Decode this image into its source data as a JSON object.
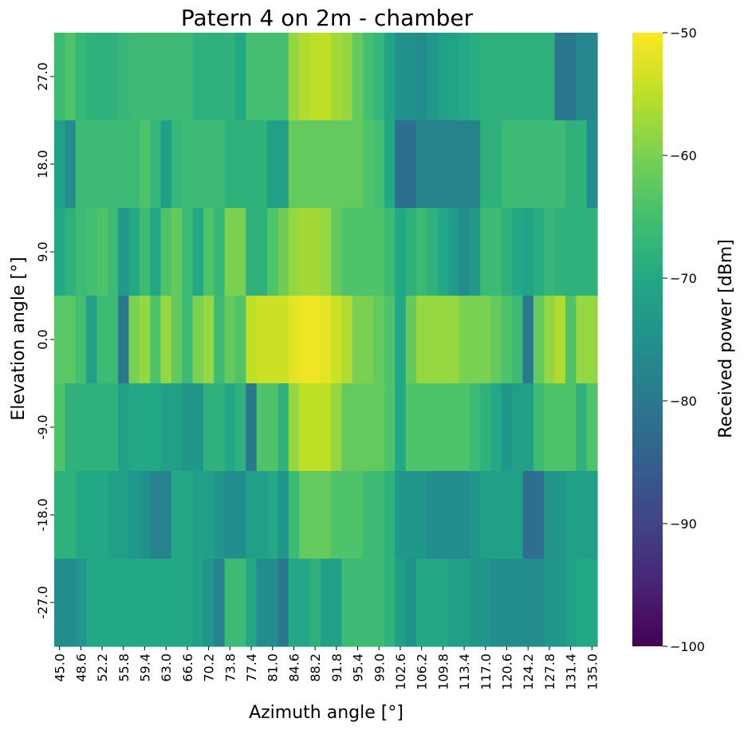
{
  "chart_data": {
    "type": "heatmap",
    "title": "Patern 4 on 2m - chamber",
    "xlabel": "Azimuth angle [°]",
    "ylabel": "Elevation angle [°]",
    "colorbar_label": "Received power [dBm]",
    "colormap": "viridis",
    "vmin": -100,
    "vmax": -50,
    "colorbar_ticks": [
      -50,
      -60,
      -70,
      -80,
      -90,
      -100
    ],
    "colorbar_tick_labels": [
      "−50",
      "−60",
      "−70",
      "−80",
      "−90",
      "−100"
    ],
    "x": [
      45.0,
      46.8,
      48.6,
      50.4,
      52.2,
      54.0,
      55.8,
      57.6,
      59.4,
      61.2,
      63.0,
      64.8,
      66.6,
      68.4,
      70.2,
      72.0,
      73.8,
      75.6,
      77.4,
      79.2,
      81.0,
      82.8,
      84.6,
      86.4,
      88.2,
      90.0,
      91.8,
      93.6,
      95.4,
      97.2,
      99.0,
      100.8,
      102.6,
      104.4,
      106.2,
      108.0,
      109.8,
      111.6,
      113.4,
      115.2,
      117.0,
      118.8,
      120.6,
      122.4,
      124.2,
      126.0,
      127.8,
      129.6,
      131.4,
      133.2,
      135.0
    ],
    "x_tick_labels": [
      "45.0",
      "48.6",
      "52.2",
      "55.8",
      "59.4",
      "63.0",
      "66.6",
      "70.2",
      "73.8",
      "77.4",
      "81.0",
      "84.6",
      "88.2",
      "91.8",
      "95.4",
      "99.0",
      "102.6",
      "106.2",
      "109.8",
      "113.4",
      "117.0",
      "120.6",
      "124.2",
      "127.8",
      "131.4",
      "135.0"
    ],
    "y": [
      27.0,
      18.0,
      9.0,
      0.0,
      -9.0,
      -18.0,
      -27.0
    ],
    "y_tick_labels": [
      "27.0",
      "18.0",
      "9.0",
      "0.0",
      "-9.0",
      "-18.0",
      "-27.0"
    ],
    "z": [
      [
        -66,
        -64,
        -67,
        -68,
        -68,
        -68,
        -67,
        -66,
        -66,
        -66,
        -66,
        -66,
        -66,
        -68,
        -68,
        -68,
        -68,
        -70,
        -65,
        -65,
        -65,
        -65,
        -58,
        -56,
        -55,
        -55,
        -57,
        -58,
        -62,
        -65,
        -67,
        -71,
        -75,
        -75,
        -76,
        -74,
        -72,
        -71,
        -70,
        -69,
        -68,
        -68,
        -68,
        -68,
        -68,
        -68,
        -68,
        -80,
        -80,
        -77,
        -77
      ],
      [
        -72,
        -76,
        -66,
        -66,
        -66,
        -66,
        -66,
        -66,
        -64,
        -67,
        -72,
        -67,
        -66,
        -66,
        -66,
        -66,
        -68,
        -68,
        -68,
        -68,
        -72,
        -72,
        -62,
        -62,
        -62,
        -62,
        -62,
        -62,
        -62,
        -64,
        -65,
        -70,
        -82,
        -82,
        -78,
        -78,
        -78,
        -78,
        -78,
        -78,
        -68,
        -68,
        -66,
        -66,
        -66,
        -66,
        -66,
        -66,
        -68,
        -68,
        -76
      ],
      [
        -70,
        -68,
        -66,
        -65,
        -64,
        -66,
        -73,
        -70,
        -66,
        -70,
        -64,
        -62,
        -66,
        -70,
        -64,
        -67,
        -60,
        -60,
        -68,
        -68,
        -64,
        -61,
        -58,
        -57,
        -57,
        -58,
        -62,
        -64,
        -64,
        -64,
        -64,
        -66,
        -70,
        -68,
        -66,
        -68,
        -70,
        -73,
        -76,
        -73,
        -66,
        -66,
        -68,
        -70,
        -71,
        -69,
        -67,
        -68,
        -68,
        -68,
        -68
      ],
      [
        -63,
        -63,
        -65,
        -72,
        -66,
        -66,
        -80,
        -60,
        -58,
        -64,
        -58,
        -62,
        -66,
        -60,
        -58,
        -66,
        -62,
        -64,
        -55,
        -54,
        -54,
        -54,
        -52,
        -51,
        -51,
        -52,
        -54,
        -56,
        -60,
        -60,
        -62,
        -64,
        -70,
        -62,
        -58,
        -58,
        -58,
        -58,
        -60,
        -60,
        -60,
        -62,
        -64,
        -66,
        -80,
        -62,
        -58,
        -56,
        -64,
        -58,
        -58
      ],
      [
        -64,
        -68,
        -68,
        -68,
        -68,
        -68,
        -72,
        -70,
        -70,
        -70,
        -72,
        -72,
        -74,
        -74,
        -68,
        -68,
        -70,
        -68,
        -80,
        -64,
        -64,
        -68,
        -58,
        -55,
        -55,
        -55,
        -58,
        -62,
        -62,
        -62,
        -62,
        -64,
        -70,
        -64,
        -64,
        -64,
        -64,
        -64,
        -64,
        -66,
        -68,
        -70,
        -74,
        -72,
        -72,
        -66,
        -64,
        -64,
        -64,
        -68,
        -64
      ],
      [
        -68,
        -68,
        -70,
        -70,
        -70,
        -72,
        -72,
        -74,
        -75,
        -78,
        -78,
        -70,
        -70,
        -72,
        -72,
        -74,
        -76,
        -76,
        -72,
        -72,
        -70,
        -74,
        -66,
        -62,
        -62,
        -62,
        -64,
        -64,
        -64,
        -66,
        -66,
        -68,
        -74,
        -74,
        -74,
        -76,
        -76,
        -76,
        -76,
        -74,
        -72,
        -72,
        -72,
        -72,
        -82,
        -82,
        -74,
        -74,
        -72,
        -72,
        -72
      ],
      [
        -76,
        -76,
        -74,
        -70,
        -70,
        -70,
        -70,
        -70,
        -70,
        -70,
        -70,
        -70,
        -70,
        -72,
        -74,
        -78,
        -66,
        -66,
        -70,
        -76,
        -76,
        -80,
        -70,
        -70,
        -68,
        -72,
        -72,
        -66,
        -66,
        -66,
        -66,
        -68,
        -72,
        -75,
        -70,
        -70,
        -70,
        -72,
        -72,
        -74,
        -74,
        -76,
        -76,
        -76,
        -76,
        -76,
        -74,
        -74,
        -72,
        -70,
        -70
      ]
    ]
  }
}
